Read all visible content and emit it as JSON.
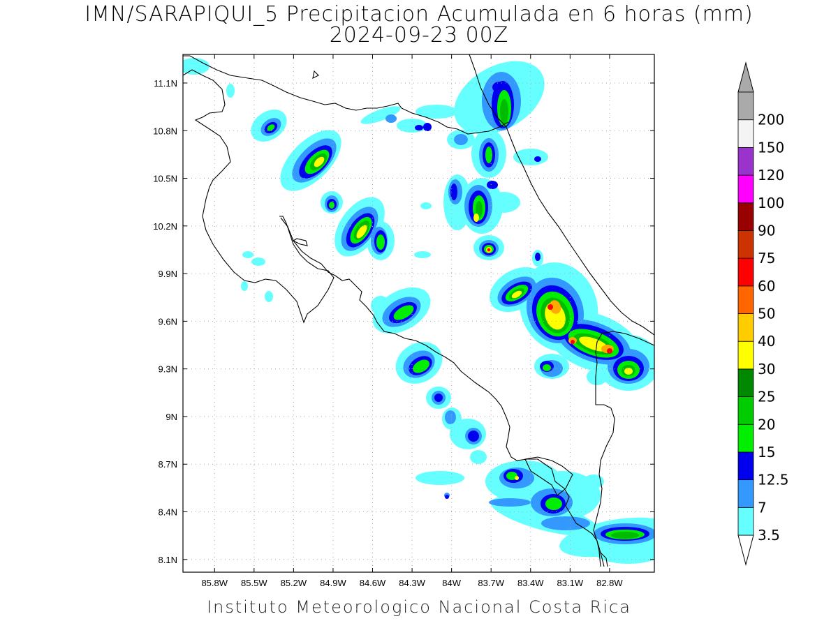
{
  "title_line1": "IMN/SARAPIQUI_5 Precipitacion Acumulada en 6 horas (mm)",
  "title_line2": "2024-09-23 00Z",
  "footer": "Instituto Meteorologico Nacional Costa Rica",
  "map": {
    "lon_range": [
      -86.04,
      -82.46
    ],
    "lat_range": [
      8.02,
      11.28
    ],
    "lon_ticks": [
      "85.8W",
      "85.5W",
      "85.2W",
      "84.9W",
      "84.6W",
      "84.3W",
      "84W",
      "83.7W",
      "83.4W",
      "83.1W",
      "82.8W"
    ],
    "lon_tick_values": [
      -85.8,
      -85.5,
      -85.2,
      -84.9,
      -84.6,
      -84.3,
      -84.0,
      -83.7,
      -83.4,
      -83.1,
      -82.8
    ],
    "lat_ticks": [
      "11.1N",
      "10.8N",
      "10.5N",
      "10.2N",
      "9.9N",
      "9.6N",
      "9.3N",
      "9N",
      "8.7N",
      "8.4N",
      "8.1N"
    ],
    "lat_tick_values": [
      11.1,
      10.8,
      10.5,
      10.2,
      9.9,
      9.6,
      9.3,
      9.0,
      8.7,
      8.4,
      8.1
    ],
    "grid": "dotted"
  },
  "colorbar": {
    "labels": [
      "3.5",
      "7",
      "12.5",
      "15",
      "20",
      "25",
      "30",
      "40",
      "50",
      "60",
      "75",
      "90",
      "100",
      "120",
      "150",
      "200"
    ],
    "colors": [
      "#66ffff",
      "#3399ff",
      "#0000ee",
      "#00ee00",
      "#00cc00",
      "#008800",
      "#ffff00",
      "#ffcc00",
      "#ff6600",
      "#ff0000",
      "#cc3300",
      "#990000",
      "#ff00ff",
      "#9933cc",
      "#f4f4f4",
      "#aaaaaa"
    ],
    "over_color": "#aaaaaa",
    "under_color": "#ffffff"
  },
  "colors": {
    "frame": "#000000",
    "coastline": "#000000",
    "grid": "#aaaaaa"
  }
}
